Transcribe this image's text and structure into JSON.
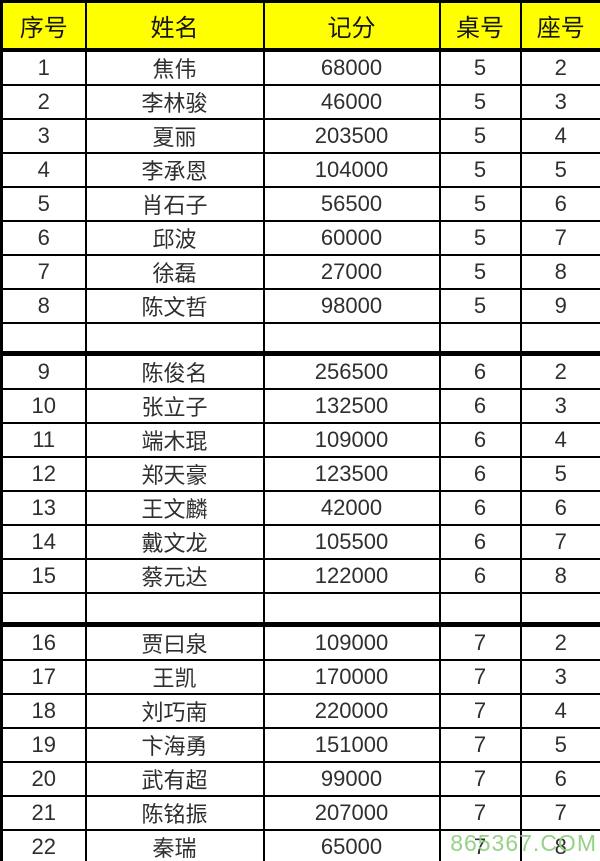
{
  "colors": {
    "header_bg": "#ffff00",
    "border": "#000000",
    "text": "#2f2f2f",
    "watermark_green": "#8fd080"
  },
  "header": {
    "columns": [
      "序号",
      "姓名",
      "记分",
      "桌号",
      "座号"
    ]
  },
  "rows": [
    {
      "no": "1",
      "name": "焦伟",
      "score": "68000",
      "table": "5",
      "seat": "2"
    },
    {
      "no": "2",
      "name": "李林骏",
      "score": "46000",
      "table": "5",
      "seat": "3"
    },
    {
      "no": "3",
      "name": "夏丽",
      "score": "203500",
      "table": "5",
      "seat": "4"
    },
    {
      "no": "4",
      "name": "李承恩",
      "score": "104000",
      "table": "5",
      "seat": "5"
    },
    {
      "no": "5",
      "name": "肖石子",
      "score": "56500",
      "table": "5",
      "seat": "6"
    },
    {
      "no": "6",
      "name": "邱波",
      "score": "60000",
      "table": "5",
      "seat": "7"
    },
    {
      "no": "7",
      "name": "徐磊",
      "score": "27000",
      "table": "5",
      "seat": "8"
    },
    {
      "no": "8",
      "name": "陈文哲",
      "score": "98000",
      "table": "5",
      "seat": "9"
    },
    {
      "empty": true,
      "no": "",
      "name": "",
      "score": "",
      "table": "",
      "seat": ""
    },
    {
      "no": "9",
      "name": "陈俊名",
      "score": "256500",
      "table": "6",
      "seat": "2"
    },
    {
      "no": "10",
      "name": "张立子",
      "score": "132500",
      "table": "6",
      "seat": "3"
    },
    {
      "no": "11",
      "name": "端木琨",
      "score": "109000",
      "table": "6",
      "seat": "4"
    },
    {
      "no": "12",
      "name": "郑天豪",
      "score": "123500",
      "table": "6",
      "seat": "5"
    },
    {
      "no": "13",
      "name": "王文麟",
      "score": "42000",
      "table": "6",
      "seat": "6"
    },
    {
      "no": "14",
      "name": "戴文龙",
      "score": "105500",
      "table": "6",
      "seat": "7"
    },
    {
      "no": "15",
      "name": "蔡元达",
      "score": "122000",
      "table": "6",
      "seat": "8"
    },
    {
      "empty": true,
      "no": "",
      "name": "",
      "score": "",
      "table": "",
      "seat": ""
    },
    {
      "no": "16",
      "name": "贾曰泉",
      "score": "109000",
      "table": "7",
      "seat": "2"
    },
    {
      "no": "17",
      "name": "王凯",
      "score": "170000",
      "table": "7",
      "seat": "3"
    },
    {
      "no": "18",
      "name": "刘巧南",
      "score": "220000",
      "table": "7",
      "seat": "4"
    },
    {
      "no": "19",
      "name": "卞海勇",
      "score": "151000",
      "table": "7",
      "seat": "5"
    },
    {
      "no": "20",
      "name": "武有超",
      "score": "99000",
      "table": "7",
      "seat": "6"
    },
    {
      "no": "21",
      "name": "陈铭振",
      "score": "207000",
      "table": "7",
      "seat": "7"
    },
    {
      "no": "22",
      "name": "秦瑞",
      "score": "65000",
      "table": "7",
      "seat": "8"
    }
  ],
  "watermark": {
    "text": "865367.COM"
  }
}
